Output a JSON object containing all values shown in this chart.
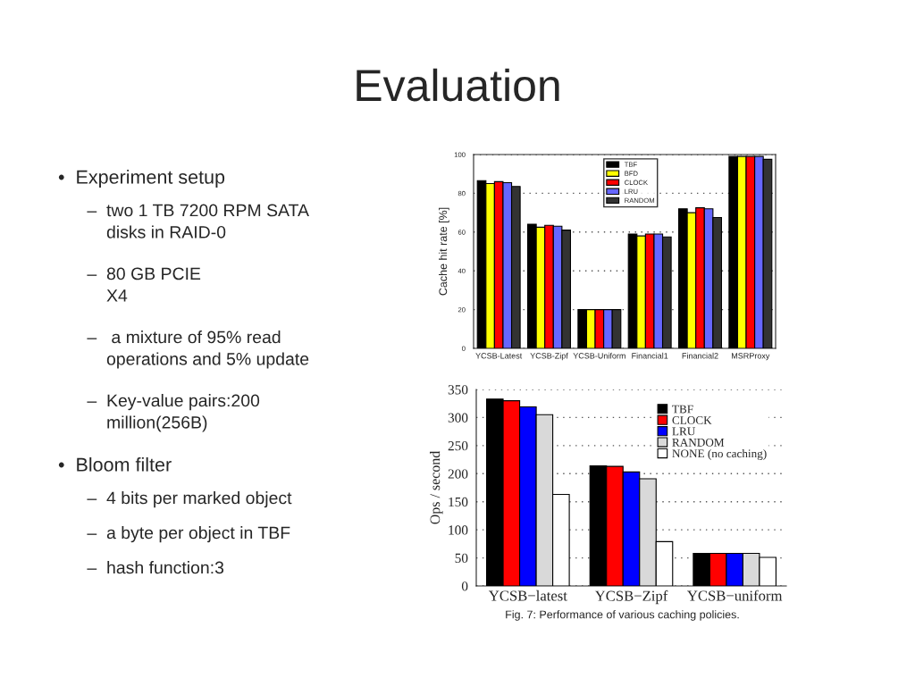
{
  "chart_data": [
    {
      "type": "bar",
      "title": "Evaluation",
      "annotations": [
        "•  Experiment setup",
        "      –  two 1 TB 7200 RPM SATA\n          disks in RAID-0",
        "      –  80 GB PCIE\n          X4",
        "      –   a mixture of 95% read\n          operations and 5% update",
        "      –  Key-value pairs:200\n          million(256B)",
        "•  Bloom filter",
        "      –  4 bits per marked object",
        "      –  a byte per object in TBF",
        "      –  hash function:3"
      ],
      "ylabel": "Cache hit rate [%]",
      "categories": [
        "YCSB-Latest",
        "YCSB-Zipf",
        "YCSB-Uniform",
        "Financial1",
        "Financial2",
        "MSRProxy"
      ],
      "series": [
        {
          "name": "TBF",
          "color": "#000000",
          "values": [
            86.5,
            64,
            20,
            59,
            72,
            99
          ]
        },
        {
          "name": "BFD",
          "color": "#ffff00",
          "values": [
            85,
            62.5,
            20,
            58,
            70,
            99
          ]
        },
        {
          "name": "CLOCK",
          "color": "#ff0000",
          "values": [
            86,
            63.5,
            20,
            59,
            72.5,
            99
          ]
        },
        {
          "name": "LRU",
          "color": "#6666ff",
          "values": [
            85.5,
            63,
            20,
            59,
            72,
            99
          ]
        },
        {
          "name": "RANDOM",
          "color": "#333333",
          "values": [
            83.5,
            61,
            20,
            57.5,
            67.5,
            97.5
          ]
        }
      ],
      "ylim": [
        0,
        100
      ],
      "yticks": [
        0,
        20,
        40,
        60,
        80,
        100
      ],
      "grid": "y",
      "legend": "top"
    },
    {
      "type": "bar",
      "annotations": [
        "Fig. 7: Performance of various caching policies."
      ],
      "ylabel": "Ops / second",
      "categories": [
        "YCSB−latest",
        "YCSB−Zipf",
        "YCSB−uniform"
      ],
      "series": [
        {
          "name": "TBF",
          "color": "#000000",
          "values": [
            333,
            214,
            58
          ]
        },
        {
          "name": "CLOCK",
          "color": "#ff0000",
          "values": [
            330,
            213,
            58
          ]
        },
        {
          "name": "LRU",
          "color": "#0000ff",
          "values": [
            319,
            203,
            58
          ]
        },
        {
          "name": "RANDOM",
          "color": "#d9d9d9",
          "values": [
            305,
            191,
            58
          ]
        },
        {
          "name": "NONE (no caching)",
          "color": "#ffffff",
          "values": [
            163,
            79,
            51
          ]
        }
      ],
      "ylim": [
        0,
        350
      ],
      "yticks": [
        0,
        50,
        100,
        150,
        200,
        250,
        300,
        350
      ],
      "grid": "y",
      "legend": "top right"
    }
  ]
}
